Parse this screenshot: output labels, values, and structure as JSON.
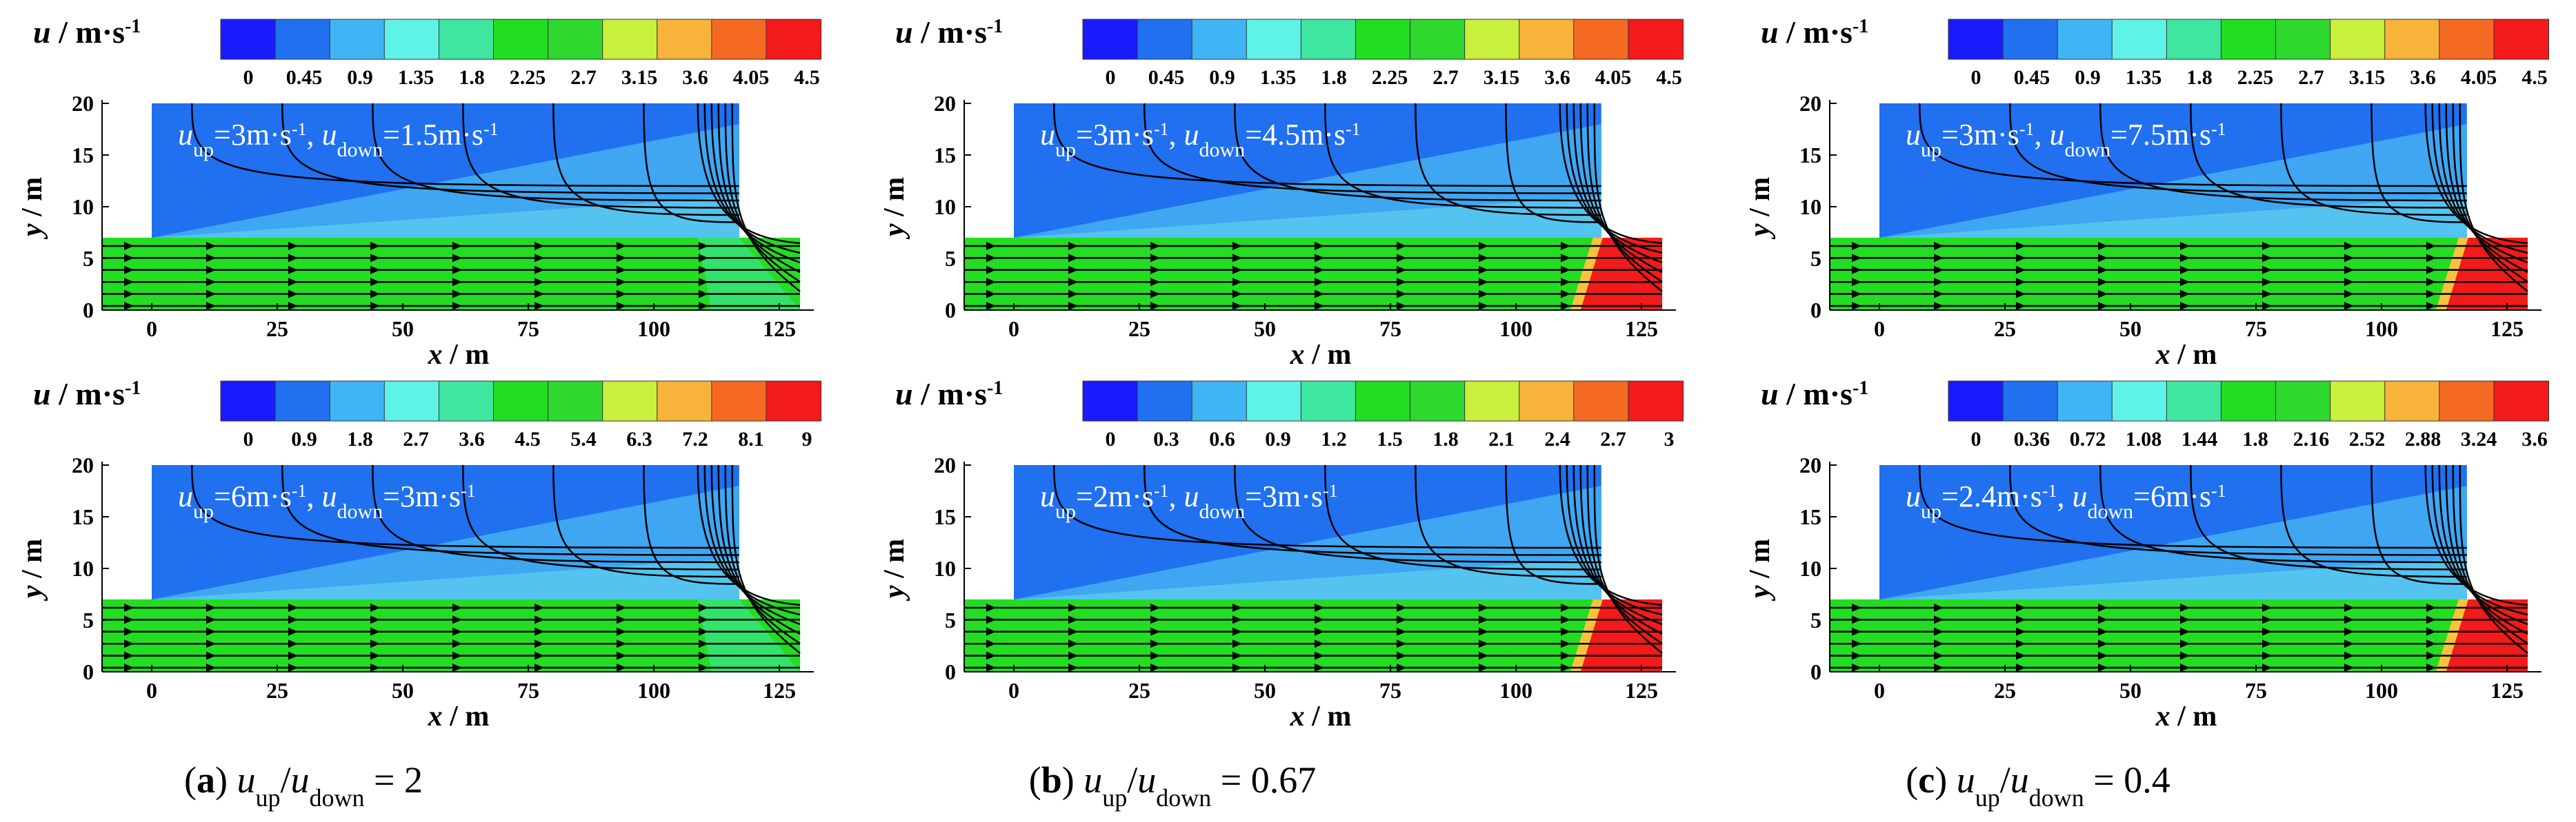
{
  "figure": {
    "x_label": "x / m",
    "y_label": "y / m",
    "colorbar_label": "u / m·s",
    "colorbar_exponent": "-1",
    "x_ticks": [
      "0",
      "25",
      "50",
      "75",
      "100",
      "125"
    ],
    "y_ticks": [
      "0",
      "5",
      "10",
      "15",
      "20"
    ],
    "colors": [
      "#1a1aff",
      "#2070f0",
      "#3fb5f5",
      "#5ff3e8",
      "#3ee6a0",
      "#22dd22",
      "#2ed82e",
      "#c8f03c",
      "#f8b33a",
      "#f56a22",
      "#f21a1a"
    ],
    "panels": [
      {
        "annotation": "u_up=3m·s-1, u_down=1.5m·s-1",
        "up": "3m·s",
        "down": "1.5m·s",
        "cbar": [
          "0",
          "0.45",
          "0.9",
          "1.35",
          "1.8",
          "2.25",
          "2.7",
          "3.15",
          "3.6",
          "4.05",
          "4.5"
        ]
      },
      {
        "annotation": "u_up=3m·s-1, u_down=4.5m·s-1",
        "up": "3m·s",
        "down": "4.5m·s",
        "cbar": [
          "0",
          "0.45",
          "0.9",
          "1.35",
          "1.8",
          "2.25",
          "2.7",
          "3.15",
          "3.6",
          "4.05",
          "4.5"
        ]
      },
      {
        "annotation": "u_up=3m·s-1, u_down=7.5m·s-1",
        "up": "3m·s",
        "down": "7.5m·s",
        "cbar": [
          "0",
          "0.45",
          "0.9",
          "1.35",
          "1.8",
          "2.25",
          "2.7",
          "3.15",
          "3.6",
          "4.05",
          "4.5"
        ]
      },
      {
        "annotation": "u_up=6m·s-1, u_down=3m·s-1",
        "up": "6m·s",
        "down": "3m·s",
        "cbar": [
          "0",
          "0.9",
          "1.8",
          "2.7",
          "3.6",
          "4.5",
          "5.4",
          "6.3",
          "7.2",
          "8.1",
          "9"
        ]
      },
      {
        "annotation": "u_up=2m·s-1, u_down=3m·s-1",
        "up": "2m·s",
        "down": "3m·s",
        "cbar": [
          "0",
          "0.3",
          "0.6",
          "0.9",
          "1.2",
          "1.5",
          "1.8",
          "2.1",
          "2.4",
          "2.7",
          "3"
        ]
      },
      {
        "annotation": "u_up=2.4m·s-1, u_down=6m·s-1",
        "up": "2.4m·s",
        "down": "6m·s",
        "cbar": [
          "0",
          "0.36",
          "0.72",
          "1.08",
          "1.44",
          "1.8",
          "2.16",
          "2.52",
          "2.88",
          "3.24",
          "3.6"
        ]
      }
    ],
    "captions": [
      {
        "letter": "(a)",
        "ratio": "2"
      },
      {
        "letter": "(b)",
        "ratio": "0.67"
      },
      {
        "letter": "(c)",
        "ratio": "0.4"
      }
    ]
  }
}
